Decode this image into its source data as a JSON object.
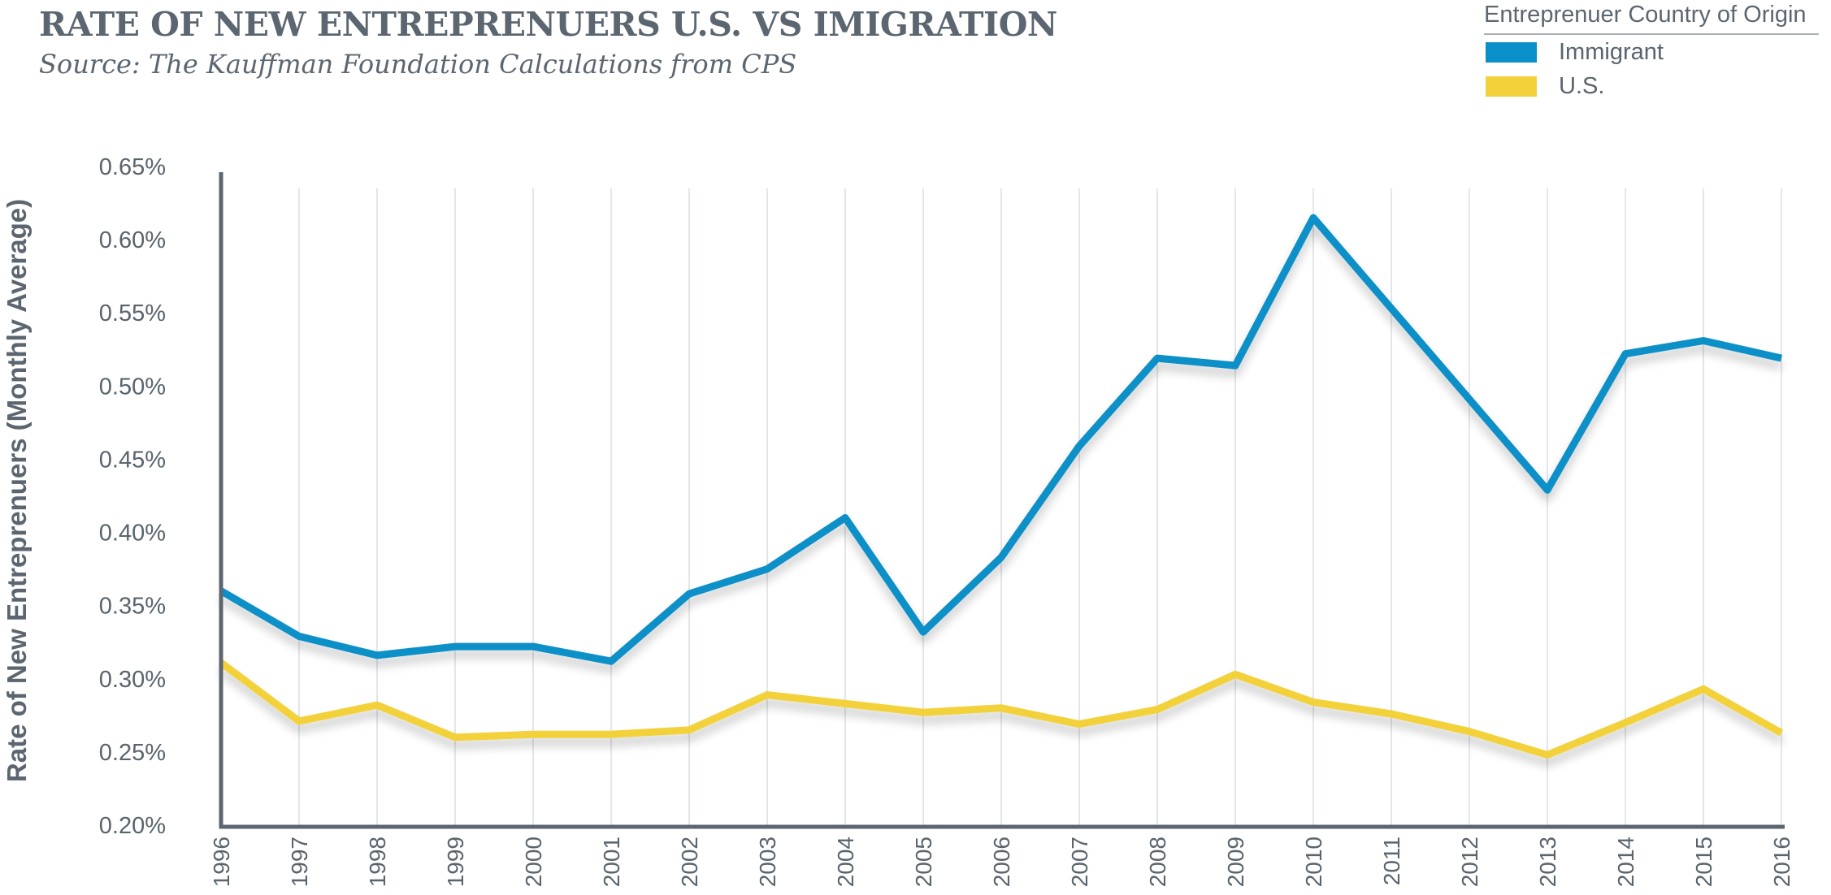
{
  "title": "RATE OF NEW ENTREPRENUERS U.S. VS IMIGRATION",
  "subtitle": "Source: The Kauffman Foundation Calculations from CPS",
  "legend": {
    "title": "Entreprenuer Country of Origin",
    "items": [
      {
        "label": "Immigrant",
        "color": "#0a8fc8"
      },
      {
        "label": "U.S.",
        "color": "#f2d13b"
      }
    ]
  },
  "colors": {
    "axis": "#5c6670",
    "grid": "#e3e6e8",
    "text": "#59646d"
  },
  "chart_data": {
    "type": "line",
    "title": "RATE OF NEW ENTREPRENUERS U.S. VS IMIGRATION",
    "subtitle": "Source: The Kauffman Foundation Calculations from CPS",
    "xlabel": "",
    "ylabel": "Rate of New Entreprenuers (Monthly Average)",
    "x": [
      "1996",
      "1997",
      "1998",
      "1999",
      "2000",
      "2001",
      "2002",
      "2003",
      "2004",
      "2005",
      "2006",
      "2007",
      "2008",
      "2009",
      "2010",
      "2011",
      "2012",
      "2013",
      "2014",
      "2015",
      "2016"
    ],
    "ylim": [
      0.2,
      0.65
    ],
    "yticks": [
      "0.20%",
      "0.25%",
      "0.30%",
      "0.35%",
      "0.40%",
      "0.45%",
      "0.50%",
      "0.55%",
      "0.60%",
      "0.65%"
    ],
    "ytick_values": [
      0.2,
      0.25,
      0.3,
      0.35,
      0.4,
      0.45,
      0.5,
      0.55,
      0.6,
      0.65
    ],
    "grid": "vertical",
    "legend_position": "top-right",
    "series": [
      {
        "name": "Immigrant",
        "color": "#0a8fc8",
        "values": [
          0.36,
          0.329,
          0.316,
          0.322,
          0.322,
          0.312,
          0.358,
          0.375,
          0.41,
          0.332,
          0.383,
          0.459,
          0.519,
          0.514,
          0.615,
          0.553,
          0.491,
          0.429,
          0.522,
          0.531,
          0.519
        ]
      },
      {
        "name": "U.S.",
        "color": "#f2d13b",
        "values": [
          0.311,
          0.271,
          0.282,
          0.26,
          0.262,
          0.262,
          0.265,
          0.289,
          0.283,
          0.277,
          0.28,
          0.269,
          0.279,
          0.303,
          0.284,
          0.276,
          0.264,
          0.248,
          0.27,
          0.293,
          0.263
        ]
      }
    ]
  }
}
